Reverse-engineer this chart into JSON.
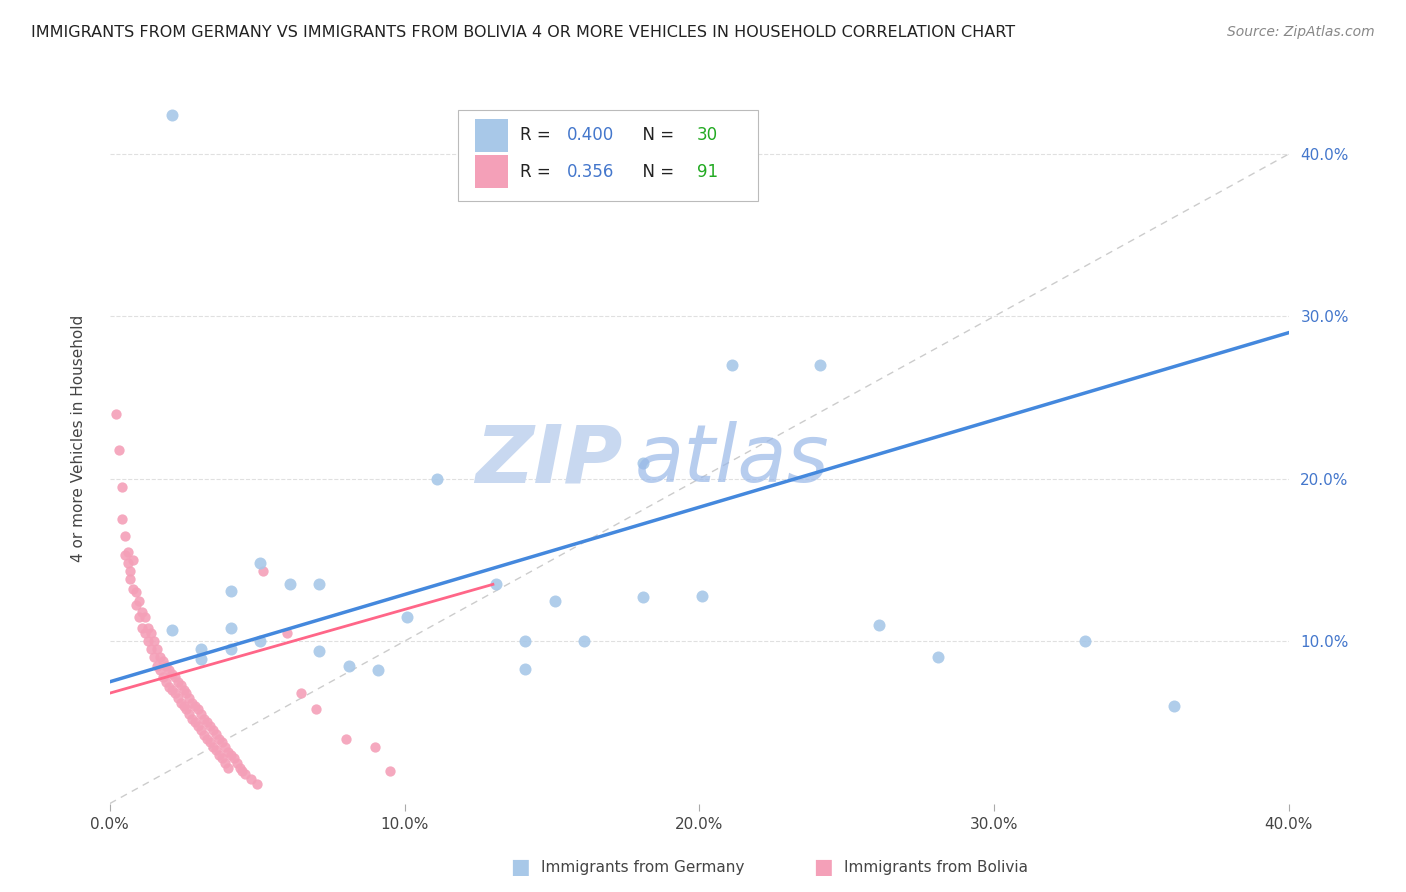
{
  "title": "IMMIGRANTS FROM GERMANY VS IMMIGRANTS FROM BOLIVIA 4 OR MORE VEHICLES IN HOUSEHOLD CORRELATION CHART",
  "source": "Source: ZipAtlas.com",
  "ylabel": "4 or more Vehicles in Household",
  "xlim": [
    0.0,
    0.4
  ],
  "ylim": [
    0.0,
    0.45
  ],
  "xtick_vals": [
    0.0,
    0.1,
    0.2,
    0.3,
    0.4
  ],
  "ytick_vals": [
    0.1,
    0.2,
    0.3,
    0.4
  ],
  "germany_color": "#a8c8e8",
  "bolivia_color": "#f4a0b8",
  "germany_R": 0.4,
  "germany_N": 30,
  "bolivia_R": 0.356,
  "bolivia_N": 91,
  "legend_R_color": "#4477cc",
  "legend_N_color": "#22aa22",
  "germany_line_color": "#4488dd",
  "bolivia_line_color": "#ff6688",
  "diagonal_color": "#cccccc",
  "watermark_zip_color": "#c8d8f0",
  "watermark_atlas_color": "#99b8e8",
  "germany_scatter": [
    [
      0.021,
      0.424
    ],
    [
      0.051,
      0.148
    ],
    [
      0.021,
      0.107
    ],
    [
      0.041,
      0.108
    ],
    [
      0.031,
      0.095
    ],
    [
      0.041,
      0.131
    ],
    [
      0.041,
      0.095
    ],
    [
      0.031,
      0.089
    ],
    [
      0.051,
      0.1
    ],
    [
      0.061,
      0.135
    ],
    [
      0.071,
      0.135
    ],
    [
      0.071,
      0.094
    ],
    [
      0.081,
      0.085
    ],
    [
      0.091,
      0.082
    ],
    [
      0.101,
      0.115
    ],
    [
      0.111,
      0.2
    ],
    [
      0.131,
      0.135
    ],
    [
      0.141,
      0.1
    ],
    [
      0.141,
      0.083
    ],
    [
      0.151,
      0.125
    ],
    [
      0.161,
      0.1
    ],
    [
      0.181,
      0.127
    ],
    [
      0.181,
      0.21
    ],
    [
      0.201,
      0.128
    ],
    [
      0.211,
      0.27
    ],
    [
      0.241,
      0.27
    ],
    [
      0.261,
      0.11
    ],
    [
      0.281,
      0.09
    ],
    [
      0.331,
      0.1
    ],
    [
      0.361,
      0.06
    ]
  ],
  "bolivia_scatter": [
    [
      0.002,
      0.24
    ],
    [
      0.003,
      0.218
    ],
    [
      0.004,
      0.195
    ],
    [
      0.004,
      0.175
    ],
    [
      0.005,
      0.165
    ],
    [
      0.005,
      0.153
    ],
    [
      0.006,
      0.148
    ],
    [
      0.006,
      0.155
    ],
    [
      0.007,
      0.143
    ],
    [
      0.007,
      0.138
    ],
    [
      0.008,
      0.15
    ],
    [
      0.008,
      0.132
    ],
    [
      0.009,
      0.13
    ],
    [
      0.009,
      0.122
    ],
    [
      0.01,
      0.125
    ],
    [
      0.01,
      0.115
    ],
    [
      0.011,
      0.118
    ],
    [
      0.011,
      0.108
    ],
    [
      0.012,
      0.115
    ],
    [
      0.012,
      0.105
    ],
    [
      0.013,
      0.108
    ],
    [
      0.013,
      0.1
    ],
    [
      0.014,
      0.105
    ],
    [
      0.014,
      0.095
    ],
    [
      0.015,
      0.1
    ],
    [
      0.015,
      0.09
    ],
    [
      0.016,
      0.095
    ],
    [
      0.016,
      0.085
    ],
    [
      0.017,
      0.09
    ],
    [
      0.017,
      0.082
    ],
    [
      0.018,
      0.088
    ],
    [
      0.018,
      0.078
    ],
    [
      0.019,
      0.085
    ],
    [
      0.019,
      0.075
    ],
    [
      0.02,
      0.082
    ],
    [
      0.02,
      0.072
    ],
    [
      0.021,
      0.08
    ],
    [
      0.021,
      0.07
    ],
    [
      0.022,
      0.078
    ],
    [
      0.022,
      0.068
    ],
    [
      0.023,
      0.075
    ],
    [
      0.023,
      0.065
    ],
    [
      0.024,
      0.073
    ],
    [
      0.024,
      0.062
    ],
    [
      0.025,
      0.07
    ],
    [
      0.025,
      0.06
    ],
    [
      0.026,
      0.068
    ],
    [
      0.026,
      0.058
    ],
    [
      0.027,
      0.065
    ],
    [
      0.027,
      0.055
    ],
    [
      0.028,
      0.062
    ],
    [
      0.028,
      0.052
    ],
    [
      0.029,
      0.06
    ],
    [
      0.029,
      0.05
    ],
    [
      0.03,
      0.058
    ],
    [
      0.03,
      0.048
    ],
    [
      0.031,
      0.055
    ],
    [
      0.031,
      0.045
    ],
    [
      0.032,
      0.052
    ],
    [
      0.032,
      0.042
    ],
    [
      0.033,
      0.05
    ],
    [
      0.033,
      0.04
    ],
    [
      0.034,
      0.048
    ],
    [
      0.034,
      0.038
    ],
    [
      0.035,
      0.045
    ],
    [
      0.035,
      0.035
    ],
    [
      0.036,
      0.043
    ],
    [
      0.036,
      0.033
    ],
    [
      0.037,
      0.04
    ],
    [
      0.037,
      0.03
    ],
    [
      0.038,
      0.038
    ],
    [
      0.038,
      0.028
    ],
    [
      0.039,
      0.035
    ],
    [
      0.039,
      0.025
    ],
    [
      0.04,
      0.032
    ],
    [
      0.04,
      0.022
    ],
    [
      0.041,
      0.03
    ],
    [
      0.042,
      0.028
    ],
    [
      0.043,
      0.025
    ],
    [
      0.044,
      0.022
    ],
    [
      0.045,
      0.02
    ],
    [
      0.046,
      0.018
    ],
    [
      0.048,
      0.015
    ],
    [
      0.05,
      0.012
    ],
    [
      0.052,
      0.143
    ],
    [
      0.06,
      0.105
    ],
    [
      0.065,
      0.068
    ],
    [
      0.07,
      0.058
    ],
    [
      0.08,
      0.04
    ],
    [
      0.09,
      0.035
    ],
    [
      0.095,
      0.02
    ]
  ],
  "germany_line": [
    [
      0.0,
      0.075
    ],
    [
      0.4,
      0.29
    ]
  ],
  "bolivia_line": [
    [
      0.0,
      0.068
    ],
    [
      0.13,
      0.135
    ]
  ]
}
